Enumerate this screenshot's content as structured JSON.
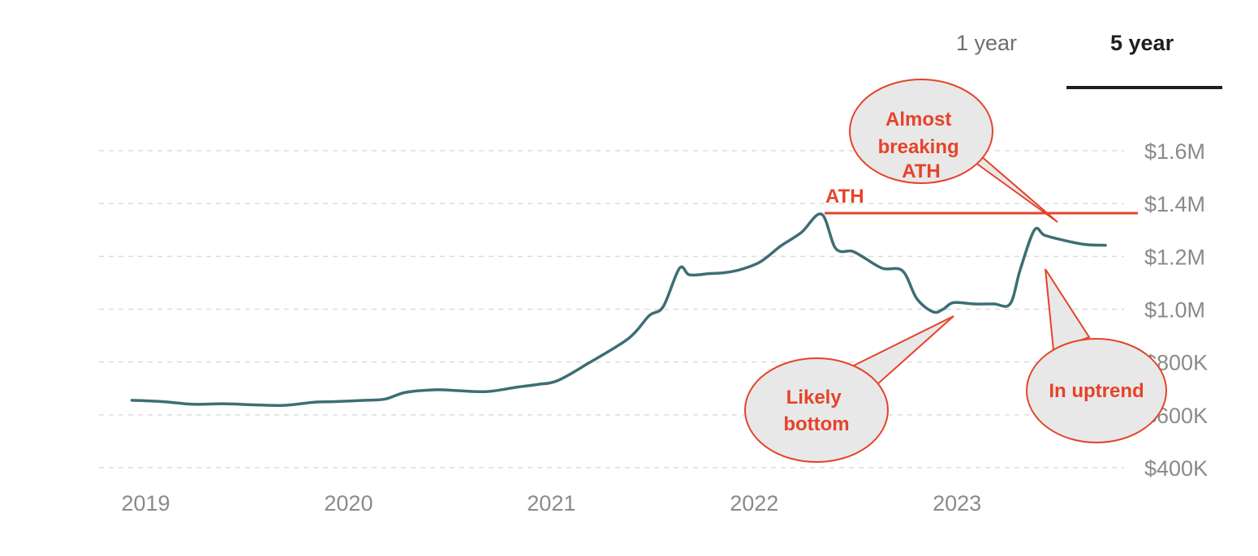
{
  "tabs": [
    {
      "label": "1 year",
      "active": false
    },
    {
      "label": "5 year",
      "active": true
    }
  ],
  "chart_data": {
    "type": "line",
    "title": "",
    "xlabel": "",
    "ylabel": "",
    "x_ticks": [
      "2019",
      "2020",
      "2021",
      "2022",
      "2023"
    ],
    "y_ticks": [
      "$400K",
      "$600K",
      "$800K",
      "$1.0M",
      "$1.2M",
      "$1.4M",
      "$1.6M"
    ],
    "ylim": [
      400000,
      1600000
    ],
    "xlim": [
      2018.93,
      2023.88
    ],
    "grid": "horizontal dashed",
    "line_color": "#3d6e74",
    "series": [
      {
        "x": [
          2019.0,
          2019.15,
          2019.3,
          2019.45,
          2019.6,
          2019.75,
          2019.9,
          2020.0,
          2020.15,
          2020.25,
          2020.35,
          2020.5,
          2020.6,
          2020.75,
          2020.9,
          2021.0,
          2021.1,
          2021.25,
          2021.45,
          2021.55,
          2021.62,
          2021.7,
          2021.75,
          2021.85,
          2021.92,
          2022.0,
          2022.1,
          2022.2,
          2022.3,
          2022.4,
          2022.47,
          2022.55,
          2022.6,
          2022.7,
          2022.8,
          2022.87,
          2022.95,
          2023.0,
          2023.05,
          2023.15,
          2023.25,
          2023.33,
          2023.38,
          2023.45,
          2023.5,
          2023.6,
          2023.7,
          2023.8
        ],
        "y": [
          655000,
          650000,
          640000,
          642000,
          638000,
          636000,
          648000,
          650000,
          655000,
          660000,
          685000,
          695000,
          692000,
          688000,
          705000,
          715000,
          730000,
          795000,
          890000,
          975000,
          1010000,
          1155000,
          1130000,
          1135000,
          1138000,
          1150000,
          1180000,
          1240000,
          1290000,
          1360000,
          1230000,
          1220000,
          1200000,
          1155000,
          1145000,
          1040000,
          990000,
          1000000,
          1025000,
          1020000,
          1020000,
          1020000,
          1150000,
          1300000,
          1280000,
          1260000,
          1245000,
          1242000
        ]
      }
    ],
    "annotations": {
      "ath_label": "ATH",
      "ath_value": 1370000,
      "callout_ath": "Almost\nbreaking\nATH",
      "callout_bottom": "Likely\nbottom",
      "callout_uptrend": "In uptrend",
      "color": "#e5432a"
    }
  }
}
